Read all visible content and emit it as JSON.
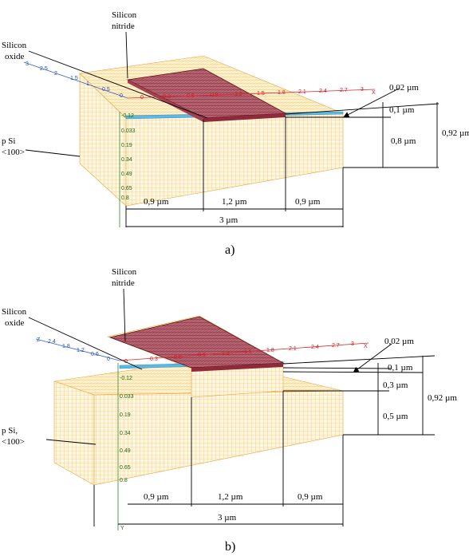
{
  "panels": [
    {
      "id": "a",
      "caption": "a)",
      "labels": {
        "nitride": [
          "Silicon",
          "nitride"
        ],
        "oxide": [
          "Silicon",
          "oxide"
        ],
        "substrate": [
          "p Si",
          "<100>"
        ]
      },
      "dims": {
        "t1": "0,02 µm",
        "t2": "0,1 µm",
        "t3": "0,8 µm",
        "total_depth": "0,92 µm",
        "w_left": "0,9 µm",
        "w_mid": "1,2 µm",
        "w_right": "0,9 µm",
        "w_total": "3 µm"
      },
      "axes": {
        "blue": [
          "3",
          "2.5",
          "2",
          "1.5",
          "1",
          "0.5",
          "0"
        ],
        "red": [
          "0",
          "0.3",
          "0.6",
          "0.9",
          "1.2",
          "1.5",
          "1.8",
          "2.1",
          "2.4",
          "2.7",
          "3",
          "X"
        ],
        "green": [
          "-0.12",
          "0.033",
          "0.19",
          "0.34",
          "0.49",
          "0.65",
          "0.8"
        ]
      }
    },
    {
      "id": "b",
      "caption": "b)",
      "labels": {
        "nitride": [
          "Silicon",
          "nitride"
        ],
        "oxide": [
          "Silicon",
          "oxide"
        ],
        "substrate": [
          "p Si,",
          "<100>"
        ]
      },
      "dims": {
        "t1": "0,02 µm",
        "t2": "0,1 µm",
        "t3": "0,3 µm",
        "t4": "0,5 µm",
        "total_depth": "0,92 µm",
        "w_left": "0,9 µm",
        "w_mid": "1,2 µm",
        "w_right": "0,9 µm",
        "w_total": "3 µm"
      },
      "axes": {
        "blue": [
          "Z",
          "2.4",
          "1.8",
          "1.2",
          "0.6",
          "0"
        ],
        "red": [
          "0",
          "0.3",
          "0.6",
          "0.9",
          "1.2",
          "1.5",
          "1.8",
          "2.1",
          "2.4",
          "2.7",
          "3",
          "X"
        ],
        "green": [
          "-0.12",
          "0.033",
          "0.19",
          "0.34",
          "0.49",
          "0.65",
          "0.8",
          "Y"
        ]
      }
    }
  ],
  "colors": {
    "mesh_substrate": "#f2b640",
    "mesh_nitride": "#7a1c2c",
    "oxide_layer": "#5fb8e0",
    "axis_x": "#d9262b",
    "axis_z": "#3a5fcd",
    "axis_y": "#2a8a2a"
  }
}
